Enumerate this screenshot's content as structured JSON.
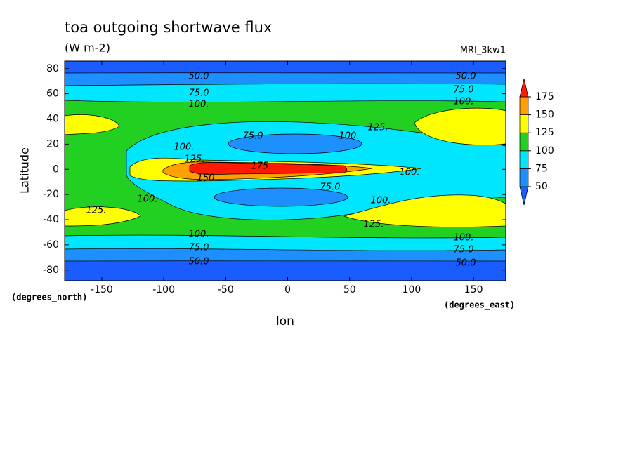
{
  "chart_data": {
    "type": "contour",
    "title": "toa outgoing shortwave flux",
    "subtitle": "(W m-2)",
    "model": "MRI_3kw1",
    "x_label": "lon",
    "y_label": "Latitude",
    "x_units": "(degrees_east)",
    "y_units": "(degrees_north)",
    "xlim": [
      -180,
      176
    ],
    "ylim": [
      -88.5,
      86
    ],
    "xticks": [
      -150,
      -100,
      -50,
      0,
      50,
      100,
      150
    ],
    "yticks": [
      -80,
      -60,
      -40,
      -20,
      0,
      20,
      40,
      60,
      80
    ],
    "colorbar": {
      "levels": [
        50,
        75,
        100,
        125,
        150,
        175
      ],
      "colors": [
        "#1a5cff",
        "#1e8fff",
        "#00e6ff",
        "#22d022",
        "#ffff00",
        "#ff9f00",
        "#ff1a00"
      ]
    },
    "contour_labels": [
      {
        "value": 50,
        "label": "50.0"
      },
      {
        "value": 50,
        "label": "50.0"
      },
      {
        "value": 50,
        "label": "50.0"
      },
      {
        "value": 50,
        "label": "50.0"
      },
      {
        "value": 75,
        "label": "75.0"
      },
      {
        "value": 75,
        "label": "75.0"
      },
      {
        "value": 75,
        "label": "75.0"
      },
      {
        "value": 75,
        "label": "75.0"
      },
      {
        "value": 75,
        "label": "75.0"
      },
      {
        "value": 75,
        "label": "75.0"
      },
      {
        "value": 100,
        "label": "100."
      },
      {
        "value": 100,
        "label": "100."
      },
      {
        "value": 100,
        "label": "100."
      },
      {
        "value": 100,
        "label": "100."
      },
      {
        "value": 100,
        "label": "100."
      },
      {
        "value": 100,
        "label": "100."
      },
      {
        "value": 100,
        "label": "100."
      },
      {
        "value": 100,
        "label": "100."
      },
      {
        "value": 100,
        "label": "100."
      },
      {
        "value": 125,
        "label": "125."
      },
      {
        "value": 125,
        "label": "125."
      },
      {
        "value": 125,
        "label": "125."
      },
      {
        "value": 125,
        "label": "125."
      },
      150,
      {
        "value": 175,
        "label": "175."
      }
    ]
  }
}
